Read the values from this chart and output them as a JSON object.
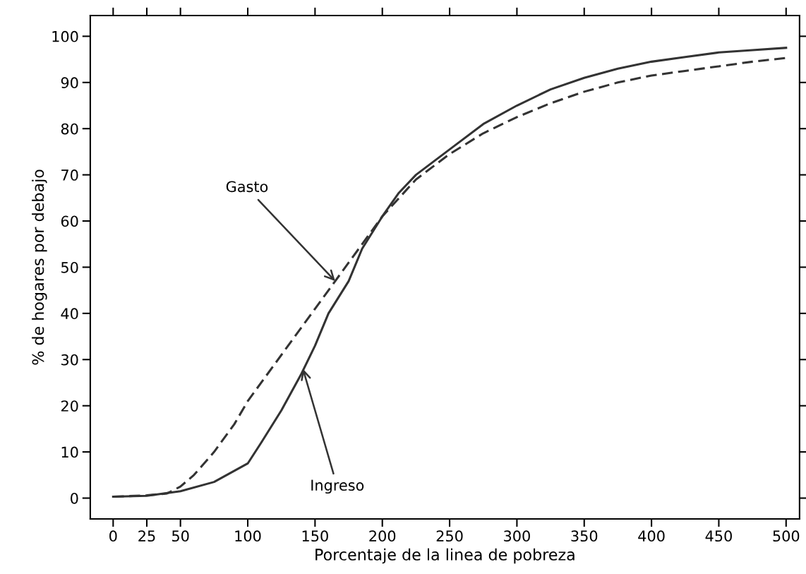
{
  "chart_data": {
    "type": "line",
    "xlabel": "Porcentaje de la linea de pobreza",
    "ylabel": "% de hogares por debajo",
    "xlim": [
      -17,
      510
    ],
    "ylim": [
      -4.5,
      104.5
    ],
    "xticks": [
      0,
      25,
      50,
      100,
      150,
      200,
      250,
      300,
      350,
      400,
      450,
      500
    ],
    "yticks": [
      0,
      10,
      20,
      30,
      40,
      50,
      60,
      70,
      80,
      90,
      100
    ],
    "grid": false,
    "legend": false,
    "marker": "none",
    "series": [
      {
        "color": "#333333",
        "line_style": "dashed",
        "x": [
          0,
          25,
          40,
          50,
          60,
          75,
          90,
          100,
          125,
          150,
          165,
          175,
          190,
          200,
          225,
          250,
          275,
          300,
          325,
          350,
          375,
          400,
          425,
          450,
          475,
          500
        ],
        "values": [
          0.3,
          0.6,
          1,
          2.5,
          5,
          10,
          16,
          21,
          31,
          41,
          47,
          51,
          57,
          61,
          69,
          74.5,
          79,
          82.5,
          85.5,
          88,
          90,
          91.5,
          92.5,
          93.5,
          94.5,
          95.3
        ]
      },
      {
        "color": "#333333",
        "line_style": "solid",
        "x": [
          0,
          25,
          50,
          75,
          100,
          110,
          125,
          140,
          150,
          160,
          175,
          185,
          200,
          212,
          225,
          250,
          275,
          300,
          325,
          350,
          375,
          400,
          425,
          450,
          475,
          500
        ],
        "values": [
          0.3,
          0.5,
          1.5,
          3.5,
          7.5,
          12,
          19,
          27,
          33,
          40,
          47,
          54,
          61,
          66,
          70,
          75.5,
          81,
          85,
          88.5,
          91,
          93,
          94.5,
          95.5,
          96.5,
          97,
          97.5
        ]
      }
    ],
    "annotations": [
      {
        "text": "Gasto",
        "x": 165,
        "y": 47
      },
      {
        "text": "Ingreso",
        "x": 141,
        "y": 28
      }
    ]
  }
}
